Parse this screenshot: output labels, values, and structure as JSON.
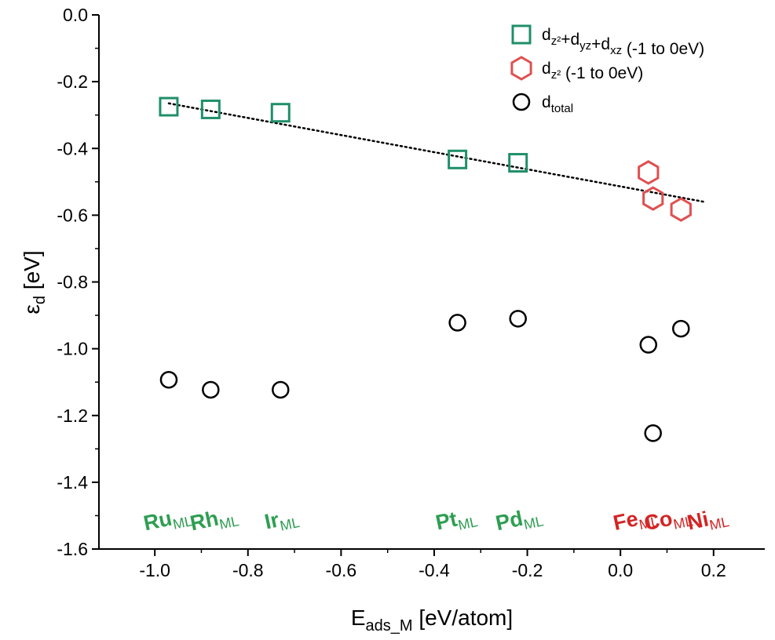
{
  "chart_data": {
    "type": "scatter",
    "xlabel": "E",
    "xlabel_sub": "ads_M",
    "xlabel_unit": " [eV/atom]",
    "ylabel": "ε",
    "ylabel_sub": "d",
    "ylabel_unit": " [eV]",
    "xlim": [
      -1.12,
      0.31
    ],
    "ylim": [
      -1.6,
      0.0
    ],
    "x_ticks": [
      -1.0,
      -0.8,
      -0.6,
      -0.4,
      -0.2,
      0.0,
      0.2
    ],
    "x_tick_labels": [
      "-1.0",
      "-0.8",
      "-0.6",
      "-0.4",
      "-0.2",
      "0.0",
      "0.2"
    ],
    "y_ticks": [
      0.0,
      -0.2,
      -0.4,
      -0.6,
      -0.8,
      -1.0,
      -1.2,
      -1.4,
      -1.6
    ],
    "y_tick_labels": [
      "0.0",
      "-0.2",
      "-0.4",
      "-0.6",
      "-0.8",
      "-1.0",
      "-1.2",
      "-1.4",
      "-1.6"
    ],
    "grid": false,
    "legend_position": "top-right",
    "colors": {
      "green": "#1f8f6a",
      "red": "#e05050",
      "black": "#000000",
      "label_green": "#2e9e52",
      "label_red": "#d42424"
    },
    "series": [
      {
        "name": "d",
        "legend_parts": [
          {
            "t": "d",
            "s": "z²"
          },
          {
            "t": "+d",
            "s": "yz"
          },
          {
            "t": "+d",
            "s": "xz"
          },
          {
            "t": " (-1 to 0eV)",
            "s": ""
          }
        ],
        "marker": "square",
        "color": "#1f8f6a",
        "points": [
          {
            "x": -0.97,
            "y": -0.275
          },
          {
            "x": -0.88,
            "y": -0.283
          },
          {
            "x": -0.73,
            "y": -0.293
          },
          {
            "x": -0.35,
            "y": -0.433
          },
          {
            "x": -0.22,
            "y": -0.443
          }
        ]
      },
      {
        "name": "d",
        "legend_parts": [
          {
            "t": "d",
            "s": "z²"
          },
          {
            "t": " (-1 to 0eV)",
            "s": ""
          }
        ],
        "marker": "hexagon",
        "color": "#e05050",
        "points": [
          {
            "x": 0.06,
            "y": -0.472
          },
          {
            "x": 0.07,
            "y": -0.55
          },
          {
            "x": 0.13,
            "y": -0.583
          }
        ]
      },
      {
        "name": "d",
        "legend_parts": [
          {
            "t": "d",
            "s": "total"
          }
        ],
        "marker": "circle",
        "color": "#000000",
        "points": [
          {
            "x": -0.97,
            "y": -1.093
          },
          {
            "x": -0.88,
            "y": -1.123
          },
          {
            "x": -0.73,
            "y": -1.123
          },
          {
            "x": -0.35,
            "y": -0.922
          },
          {
            "x": -0.22,
            "y": -0.91
          },
          {
            "x": 0.06,
            "y": -0.988
          },
          {
            "x": 0.07,
            "y": -1.253
          },
          {
            "x": 0.13,
            "y": -0.94
          }
        ]
      }
    ],
    "trendline": {
      "x1": -0.97,
      "y1": -0.265,
      "x2": 0.18,
      "y2": -0.56,
      "style": "dotted"
    },
    "annotations": [
      {
        "text": "Ru",
        "sub": "ML",
        "x": -0.97,
        "color": "#2e9e52"
      },
      {
        "text": "Rh",
        "sub": "ML",
        "x": -0.87,
        "color": "#2e9e52"
      },
      {
        "text": "Ir",
        "sub": "ML",
        "x": -0.725,
        "color": "#2e9e52"
      },
      {
        "text": "Pt",
        "sub": "ML",
        "x": -0.35,
        "color": "#2e9e52"
      },
      {
        "text": "Pd",
        "sub": "ML",
        "x": -0.215,
        "color": "#2e9e52"
      },
      {
        "text": "Fe",
        "sub": "ML",
        "x": 0.035,
        "color": "#d42424"
      },
      {
        "text": "Co",
        "sub": "ML",
        "x": 0.105,
        "color": "#d42424"
      },
      {
        "text": "Ni",
        "sub": "ML",
        "x": 0.19,
        "color": "#d42424"
      }
    ],
    "annotation_y": -1.53
  }
}
